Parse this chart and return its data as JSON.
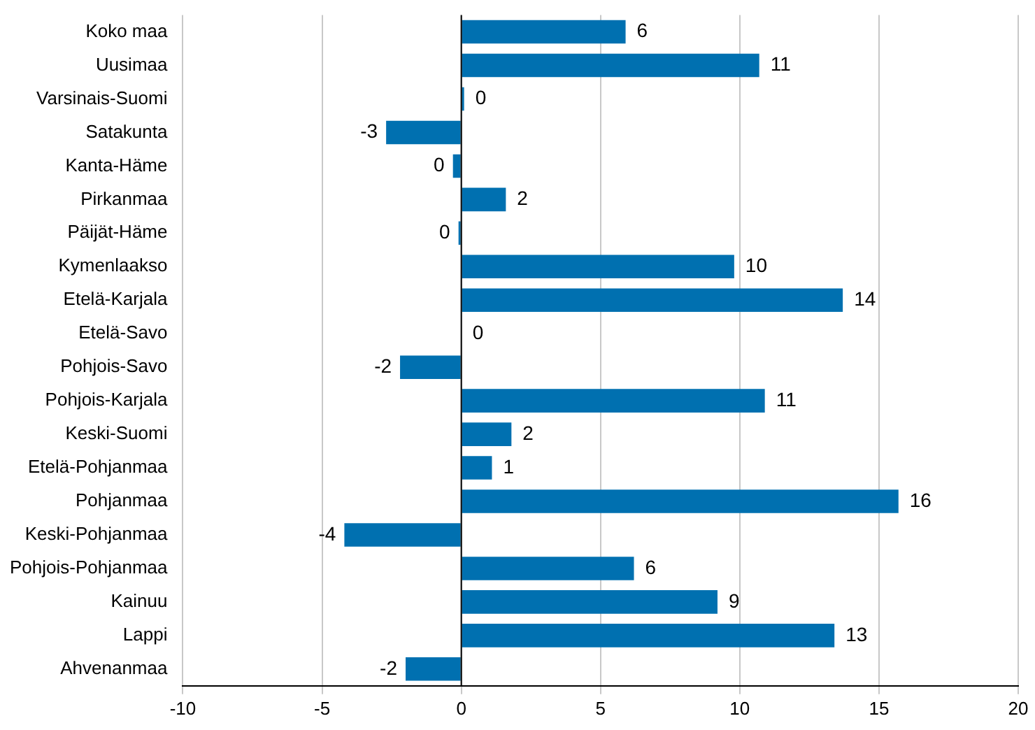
{
  "chart_data": {
    "type": "bar",
    "orientation": "horizontal",
    "categories": [
      "Koko maa",
      "Uusimaa",
      "Varsinais-Suomi",
      "Satakunta",
      "Kanta-Häme",
      "Pirkanmaa",
      "Päijät-Häme",
      "Kymenlaakso",
      "Etelä-Karjala",
      "Etelä-Savo",
      "Pohjois-Savo",
      "Pohjois-Karjala",
      "Keski-Suomi",
      "Etelä-Pohjanmaa",
      "Pohjanmaa",
      "Keski-Pohjanmaa",
      "Pohjois-Pohjanmaa",
      "Kainuu",
      "Lappi",
      "Ahvenanmaa"
    ],
    "values": [
      5.9,
      10.7,
      0.1,
      -2.7,
      -0.3,
      1.6,
      -0.1,
      9.8,
      13.7,
      0,
      -2.2,
      10.9,
      1.8,
      1.1,
      15.7,
      -4.2,
      6.2,
      9.2,
      13.4,
      -2.0
    ],
    "value_labels": [
      "6",
      "11",
      "0",
      "-3",
      "0",
      "2",
      "0",
      "10",
      "14",
      "0",
      "-2",
      "11",
      "2",
      "1",
      "16",
      "-4",
      "6",
      "9",
      "13",
      "-2"
    ],
    "color": "#0070b0",
    "xlim": [
      -10,
      20
    ],
    "xticks": [
      -10,
      -5,
      0,
      5,
      10,
      15,
      20
    ],
    "grid": "x"
  }
}
